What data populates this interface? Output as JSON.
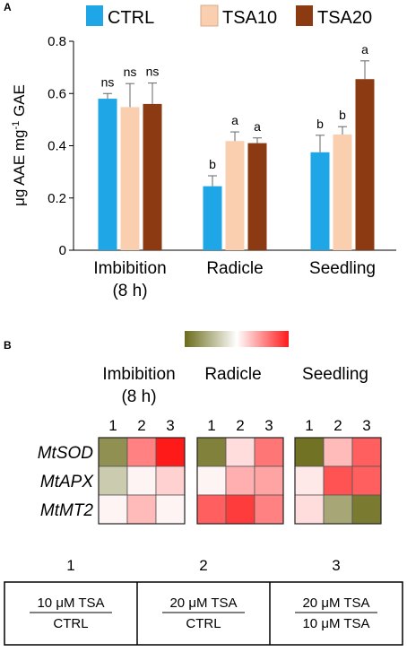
{
  "panel_a_label": "A",
  "panel_b_label": "B",
  "chart_data": [
    {
      "type": "bar",
      "ylabel_main": "μg AAE mg",
      "ylabel_sup": "-1",
      "ylabel_tail": " GAE",
      "ylim": [
        0,
        0.8
      ],
      "yticks": [
        "0",
        "0.2",
        "0.4",
        "0.6",
        "0.8"
      ],
      "categories": [
        {
          "line1": "Imbibition",
          "line2": "(8 h)"
        },
        {
          "line1": "Radicle",
          "line2": ""
        },
        {
          "line1": "Seedling",
          "line2": ""
        }
      ],
      "series": [
        {
          "name": "CTRL",
          "color": "#1ea6e6",
          "values": [
            0.58,
            0.245,
            0.375
          ],
          "errors": [
            0.02,
            0.04,
            0.065
          ],
          "labels": [
            "ns",
            "b",
            "b"
          ]
        },
        {
          "name": "TSA10",
          "color": "#f9cfb0",
          "values": [
            0.548,
            0.418,
            0.443
          ],
          "errors": [
            0.09,
            0.035,
            0.03
          ],
          "labels": [
            "ns",
            "a",
            "b"
          ]
        },
        {
          "name": "TSA20",
          "color": "#8b3a12",
          "values": [
            0.56,
            0.41,
            0.655
          ],
          "errors": [
            0.08,
            0.02,
            0.07
          ],
          "labels": [
            "ns",
            "a",
            "a"
          ]
        }
      ],
      "legend_position": "top"
    },
    {
      "type": "heatmap",
      "colorscale": [
        "#6b6b1a",
        "#ffffff",
        "#ff1a1a"
      ],
      "groups": [
        {
          "line1": "Imbibition",
          "line2": "(8 h)"
        },
        {
          "line1": "Radicle",
          "line2": ""
        },
        {
          "line1": "Seedling",
          "line2": ""
        }
      ],
      "columns": [
        "1",
        "2",
        "3"
      ],
      "rows": [
        "MtSOD",
        "MtAPX",
        "MtMT2"
      ],
      "values": [
        [
          -0.75,
          0.55,
          1.0,
          -0.85,
          0.15,
          0.6,
          -0.95,
          0.3,
          0.7
        ],
        [
          -0.35,
          0.05,
          0.2,
          0.05,
          0.35,
          0.4,
          0.1,
          0.75,
          0.7
        ],
        [
          0.05,
          0.3,
          0.05,
          0.7,
          0.85,
          0.55,
          0.15,
          -0.6,
          -0.9
        ]
      ]
    }
  ],
  "comparisons": [
    {
      "number": "1",
      "numerator": "10 μM TSA",
      "denominator": "CTRL"
    },
    {
      "number": "2",
      "numerator": "20 μM TSA",
      "denominator": "CTRL"
    },
    {
      "number": "3",
      "numerator": "20 μM TSA",
      "denominator": "10 μM TSA"
    }
  ]
}
